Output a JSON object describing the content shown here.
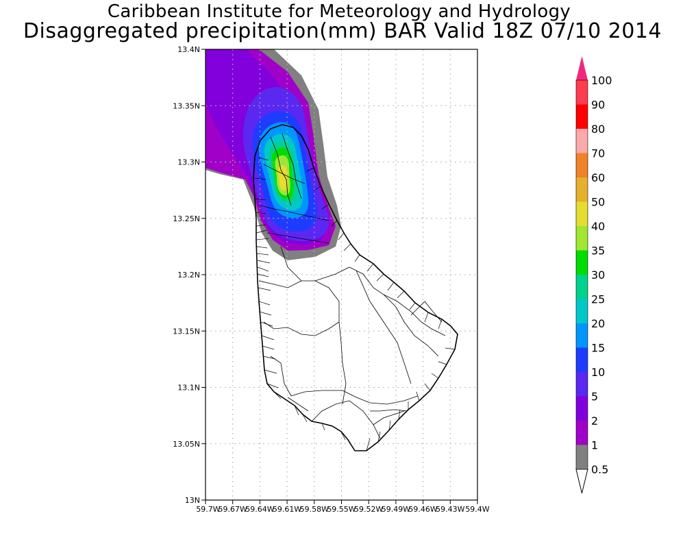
{
  "title": {
    "line1": "Caribbean Institute for Meteorology and Hydrology",
    "line2": "Disaggregated precipitation(mm) BAR Valid 18Z 07/10 2014"
  },
  "axes": {
    "x_ticks": [
      "59.7W",
      "59.67W",
      "59.64W",
      "59.61W",
      "59.58W",
      "59.55W",
      "59.52W",
      "59.49W",
      "59.46W",
      "59.43W",
      "59.4W"
    ],
    "y_ticks": [
      "13N",
      "13.05N",
      "13.1N",
      "13.15N",
      "13.2N",
      "13.25N",
      "13.3N",
      "13.35N",
      "13.4N"
    ],
    "lon_range": [
      -59.7,
      -59.4
    ],
    "lat_range": [
      13.0,
      13.4
    ],
    "grid": true
  },
  "colorbar": {
    "labels": [
      "0.5",
      "1",
      "2",
      "5",
      "10",
      "15",
      "20",
      "25",
      "30",
      "35",
      "40",
      "50",
      "60",
      "70",
      "80",
      "90",
      "100"
    ],
    "colors": [
      "#ffffff",
      "#808080",
      "#a000c8",
      "#8200dc",
      "#5a28f0",
      "#1e3cff",
      "#0096ff",
      "#00c8c8",
      "#00d28c",
      "#00dc00",
      "#a0e632",
      "#e6dc32",
      "#e6af2d",
      "#f08228",
      "#faaaaa",
      "#ff0000",
      "#ff3c50",
      "#f0287d"
    ]
  },
  "precip_max_location": {
    "lon": -59.605,
    "lat": 13.285,
    "value_mm": 40
  }
}
